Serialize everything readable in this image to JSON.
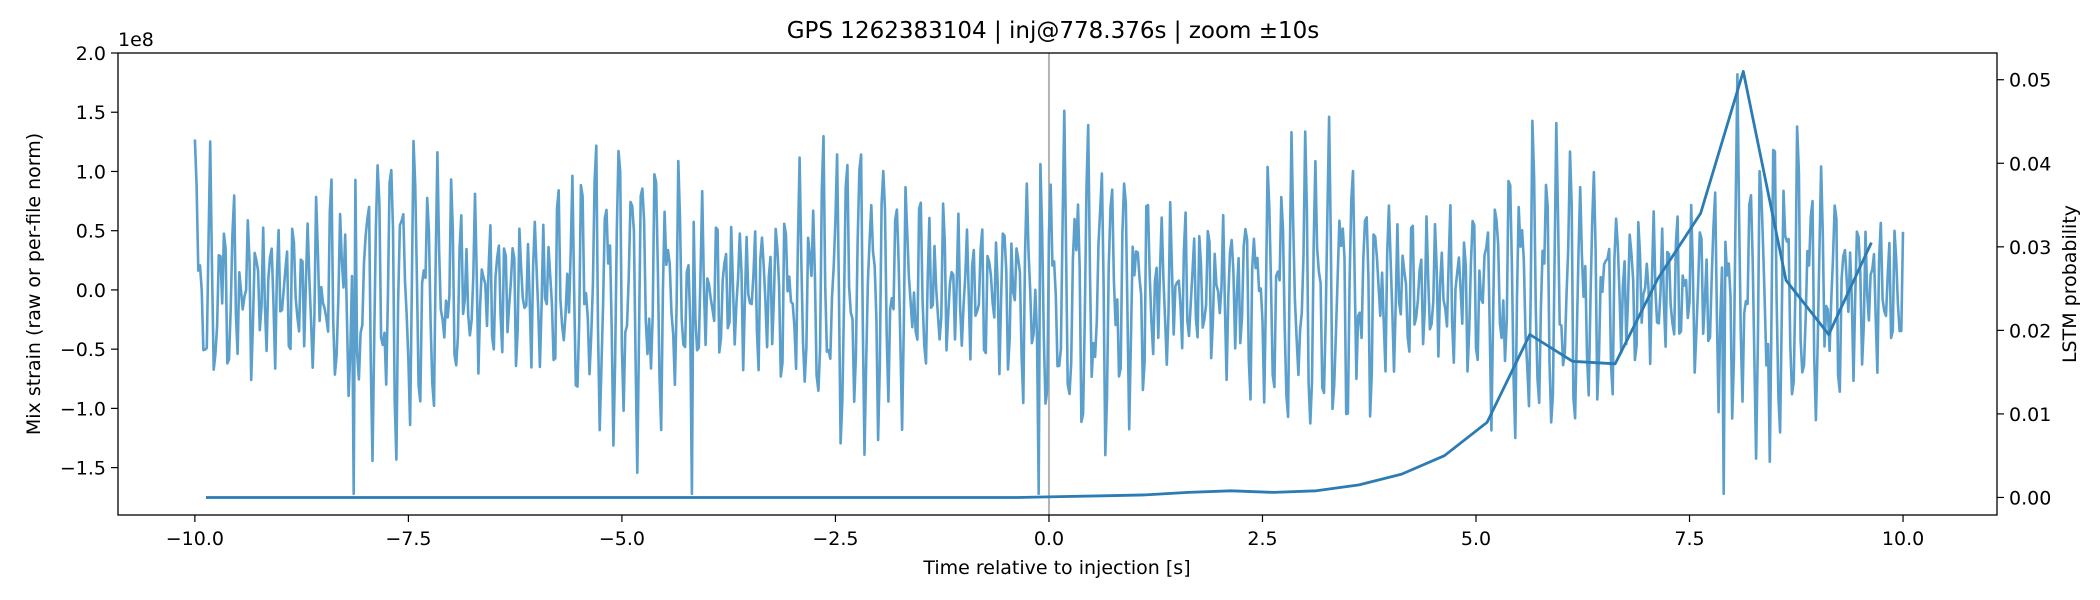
{
  "chart_data": {
    "type": "line",
    "title": "GPS 1262383104 | inj@778.376s | zoom ±10s",
    "xlabel": "Time relative to injection [s]",
    "ylabel_left": "Mix strain (raw or per-file norm)",
    "ylabel_right": "LSTM probability",
    "left_offset_text": "1e8",
    "x_range": [
      -10.9,
      11.1
    ],
    "left_range": [
      -1.9,
      2.0
    ],
    "right_range": [
      -0.0021,
      0.0532
    ],
    "x_ticks": [
      -10.0,
      -7.5,
      -5.0,
      -2.5,
      0.0,
      2.5,
      5.0,
      7.5,
      10.0
    ],
    "x_tick_labels": [
      "−10.0",
      "−7.5",
      "−5.0",
      "−2.5",
      "0.0",
      "2.5",
      "5.0",
      "7.5",
      "10.0"
    ],
    "left_ticks": [
      -1.5,
      -1.0,
      -0.5,
      0.0,
      0.5,
      1.0,
      1.5,
      2.0
    ],
    "left_tick_labels": [
      "−1.5",
      "−1.0",
      "−0.5",
      "0.0",
      "0.5",
      "1.0",
      "1.5",
      "2.0"
    ],
    "right_ticks": [
      0.0,
      0.01,
      0.02,
      0.03,
      0.04,
      0.05
    ],
    "right_tick_labels": [
      "0.00",
      "0.01",
      "0.02",
      "0.03",
      "0.04",
      "0.05"
    ],
    "vline_x": 0.0,
    "grid": false,
    "colors": {
      "strain": "#5b9fcc",
      "lstm": "#2b7bb4",
      "vline": "#b3b3b3"
    },
    "series": [
      {
        "axis": "right",
        "x": [
          -9.87,
          -9.37,
          -8.87,
          -8.37,
          -7.87,
          -7.37,
          -6.87,
          -6.37,
          -5.87,
          -5.37,
          -4.87,
          -4.37,
          -3.87,
          -3.37,
          -2.87,
          -2.37,
          -1.87,
          -1.37,
          -0.87,
          -0.37,
          0.13,
          0.63,
          1.13,
          1.63,
          2.13,
          2.63,
          3.13,
          3.63,
          4.13,
          4.63,
          5.13,
          5.63,
          6.13,
          6.63,
          7.13,
          7.63,
          8.13,
          8.63,
          9.13,
          9.63
        ],
        "values": [
          0.0,
          0.0,
          0.0,
          0.0,
          0.0,
          0.0,
          0.0,
          0.0,
          0.0,
          0.0,
          0.0,
          0.0,
          0.0,
          0.0,
          0.0,
          0.0,
          0.0,
          0.0,
          0.0,
          0.0,
          0.0001,
          0.0002,
          0.0003,
          0.0006,
          0.0008,
          0.0006,
          0.0008,
          0.0015,
          0.0028,
          0.005,
          0.009,
          0.0195,
          0.0163,
          0.016,
          0.0262,
          0.034,
          0.051,
          0.026,
          0.0195,
          0.0305
        ]
      },
      {
        "axis": "left",
        "x_start": -10.0,
        "x_end": 10.0,
        "spikes": [
          {
            "x": -8.14,
            "y": -1.72
          },
          {
            "x": -4.18,
            "y": -1.72
          },
          {
            "x": -0.12,
            "y": -1.72
          },
          {
            "x": 7.9,
            "y": -1.72
          },
          {
            "x": 8.05,
            "y": 1.82
          },
          {
            "x": 8.45,
            "y": -1.45
          }
        ]
      }
    ]
  }
}
